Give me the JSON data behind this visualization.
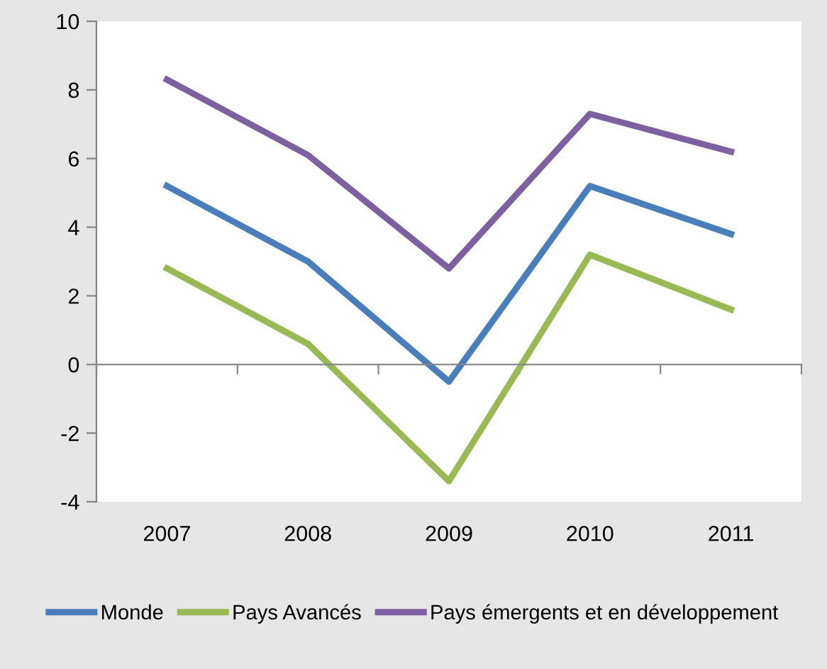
{
  "chart_data": {
    "type": "line",
    "categories": [
      "2007",
      "2008",
      "2009",
      "2010",
      "2011"
    ],
    "series": [
      {
        "name": "Monde",
        "color": "#4a7ebb",
        "values": [
          5.2,
          3.0,
          -0.5,
          5.2,
          3.8
        ]
      },
      {
        "name": "Pays Avancés",
        "color": "#98b954",
        "values": [
          2.8,
          0.6,
          -3.4,
          3.2,
          1.6
        ]
      },
      {
        "name": "Pays émergents et en développement",
        "color": "#7d60a0",
        "values": [
          8.3,
          6.1,
          2.8,
          7.3,
          6.2
        ]
      }
    ],
    "ylim": [
      -4,
      10
    ],
    "yticks": [
      -4,
      -2,
      0,
      2,
      4,
      6,
      8,
      10
    ],
    "legend": "bottom",
    "marker": "none",
    "line_style": "solid"
  }
}
